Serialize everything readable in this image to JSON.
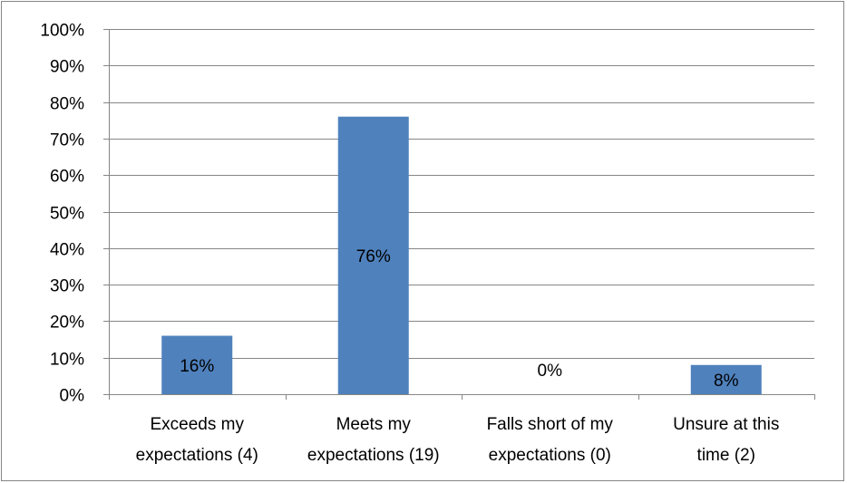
{
  "chart_data": {
    "type": "bar",
    "categories": [
      [
        "Exceeds my",
        "expectations (4)"
      ],
      [
        "Meets my",
        "expectations (19)"
      ],
      [
        "Falls short of my",
        "expectations (0)"
      ],
      [
        "Unsure at this",
        "time (2)"
      ]
    ],
    "values": [
      16,
      76,
      0,
      8
    ],
    "data_labels": [
      "16%",
      "76%",
      "0%",
      "8%"
    ],
    "y_ticks": [
      "0%",
      "10%",
      "20%",
      "30%",
      "40%",
      "50%",
      "60%",
      "70%",
      "80%",
      "90%",
      "100%"
    ],
    "ylim": [
      0,
      100
    ],
    "grid": true,
    "legend": "none",
    "bar_color": "#4F81BD",
    "grid_color": "#868686"
  }
}
